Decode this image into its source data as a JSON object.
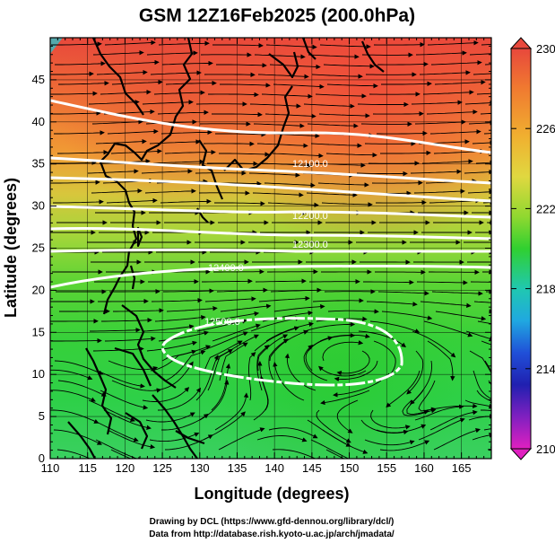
{
  "title": "GSM 12Z16Feb2025 (200.0hPa)",
  "xlabel": "Longitude (degrees)",
  "ylabel": "Latitude  (degrees)",
  "x_ticks": [
    "110",
    "115",
    "120",
    "125",
    "130",
    "135",
    "140",
    "145",
    "150",
    "155",
    "160",
    "165"
  ],
  "y_ticks": [
    "0",
    "5",
    "10",
    "15",
    "20",
    "25",
    "30",
    "35",
    "40",
    "45"
  ],
  "colorbar_ticks": [
    "230",
    "226",
    "222",
    "218",
    "214",
    "210"
  ],
  "contour_labels": [
    "12400.0",
    "12500.0",
    "12300.0",
    "12200.0",
    "12100.0"
  ],
  "footer": {
    "line1": "Drawing by DCL (https://www.gfd-dennou.org/library/dcl/)",
    "line2": "Data from http://database.rish.kyoto-u.ac.jp/arch/jmadata/"
  },
  "map": {
    "lon_range": [
      110,
      169
    ],
    "lat_range": [
      0,
      50
    ],
    "color_range": [
      210,
      230
    ],
    "colors": {
      "hot": "#e8483c",
      "orange": "#f09030",
      "yellow": "#e0d040",
      "green": "#30d030",
      "cyan": "#20c8c8",
      "blue": "#2020c0",
      "magenta": "#e020c0"
    },
    "contours": [
      {
        "label": "12500.0",
        "shape": "closed loop"
      },
      {
        "label": "12400.0",
        "shape": "line"
      },
      {
        "label": "12300.0",
        "shape": "line"
      },
      {
        "label": "12200.0",
        "shape": "line"
      },
      {
        "label": "12100.0",
        "shape": "line"
      }
    ]
  }
}
